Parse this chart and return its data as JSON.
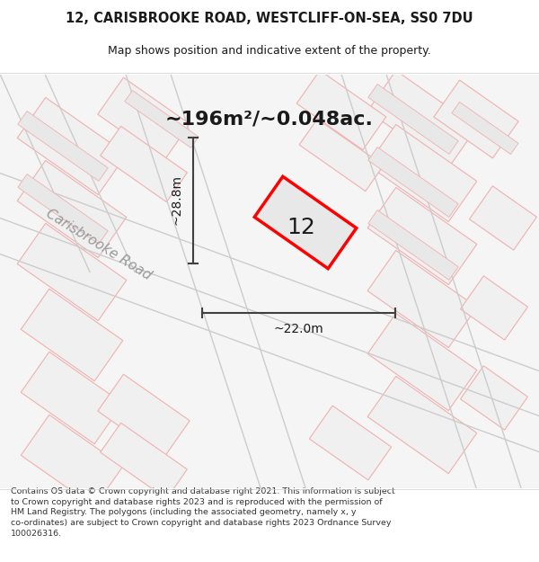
{
  "title_line1": "12, CARISBROOKE ROAD, WESTCLIFF-ON-SEA, SS0 7DU",
  "title_line2": "Map shows position and indicative extent of the property.",
  "area_text": "~196m²/~0.048ac.",
  "property_number": "12",
  "dim_height": "~28.8m",
  "dim_width": "~22.0m",
  "road_label": "Carisbrooke Road",
  "footer_lines": [
    "Contains OS data © Crown copyright and database right 2021. This information is subject",
    "to Crown copyright and database rights 2023 and is reproduced with the permission of",
    "HM Land Registry. The polygons (including the associated geometry, namely x, y",
    "co-ordinates) are subject to Crown copyright and database rights 2023 Ordnance Survey",
    "100026316."
  ],
  "bg_map_color": "#f5f5f5",
  "bg_white_color": "#ffffff",
  "plot_fill_color": "#e8e8e8",
  "plot_border_color": "#ff0000",
  "road_line_color": "#cccccc",
  "building_line_color": "#f0b0b0",
  "dim_line_color": "#404040",
  "road_label_color": "#999999",
  "title_color": "#1a1a1a",
  "footer_color": "#333333"
}
